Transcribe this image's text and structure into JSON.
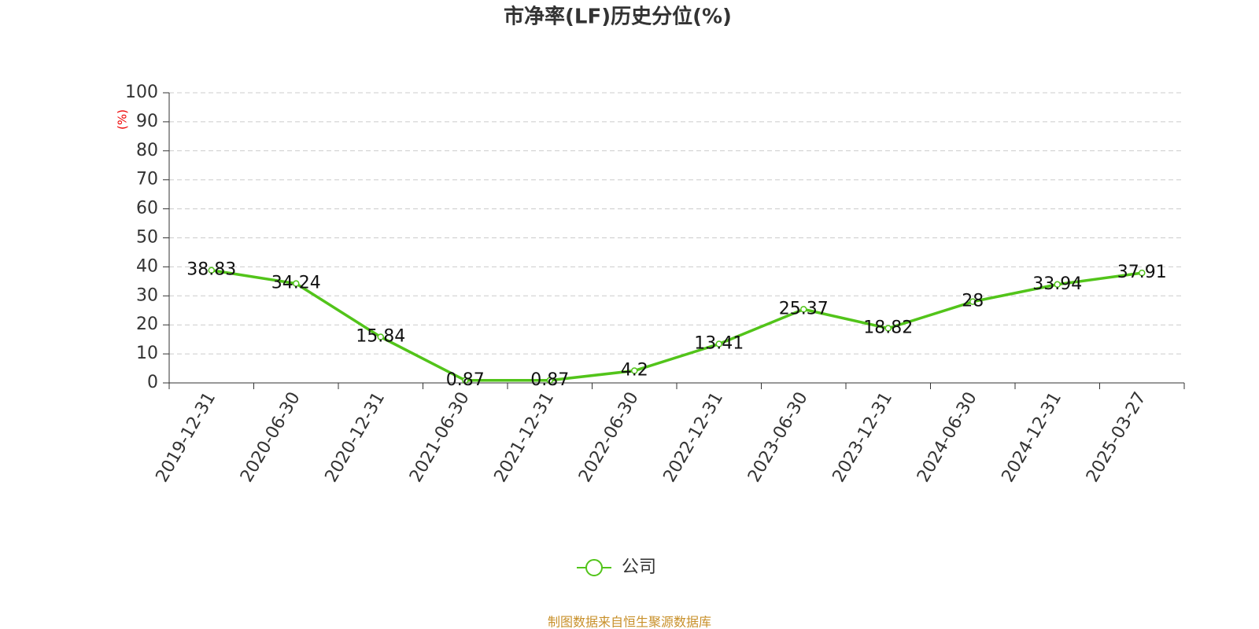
{
  "chart_data": {
    "type": "line",
    "title": "市净率(LF)历史分位(%)",
    "y_label": "(%)",
    "categories": [
      "2019-12-31",
      "2020-06-30",
      "2020-12-31",
      "2021-06-30",
      "2021-12-31",
      "2022-06-30",
      "2022-12-31",
      "2023-06-30",
      "2023-12-31",
      "2024-06-30",
      "2024-12-31",
      "2025-03-27"
    ],
    "series": [
      {
        "name": "公司",
        "color": "#52c41a",
        "values": [
          38.83,
          34.24,
          15.84,
          0.87,
          0.87,
          4.2,
          13.41,
          25.37,
          18.82,
          28,
          33.94,
          37.91
        ]
      }
    ],
    "ylim": [
      0,
      100
    ],
    "yticks": [
      0,
      10,
      20,
      30,
      40,
      50,
      60,
      70,
      80,
      90,
      100
    ],
    "grid": true,
    "source": "制图数据来自恒生聚源数据库"
  }
}
